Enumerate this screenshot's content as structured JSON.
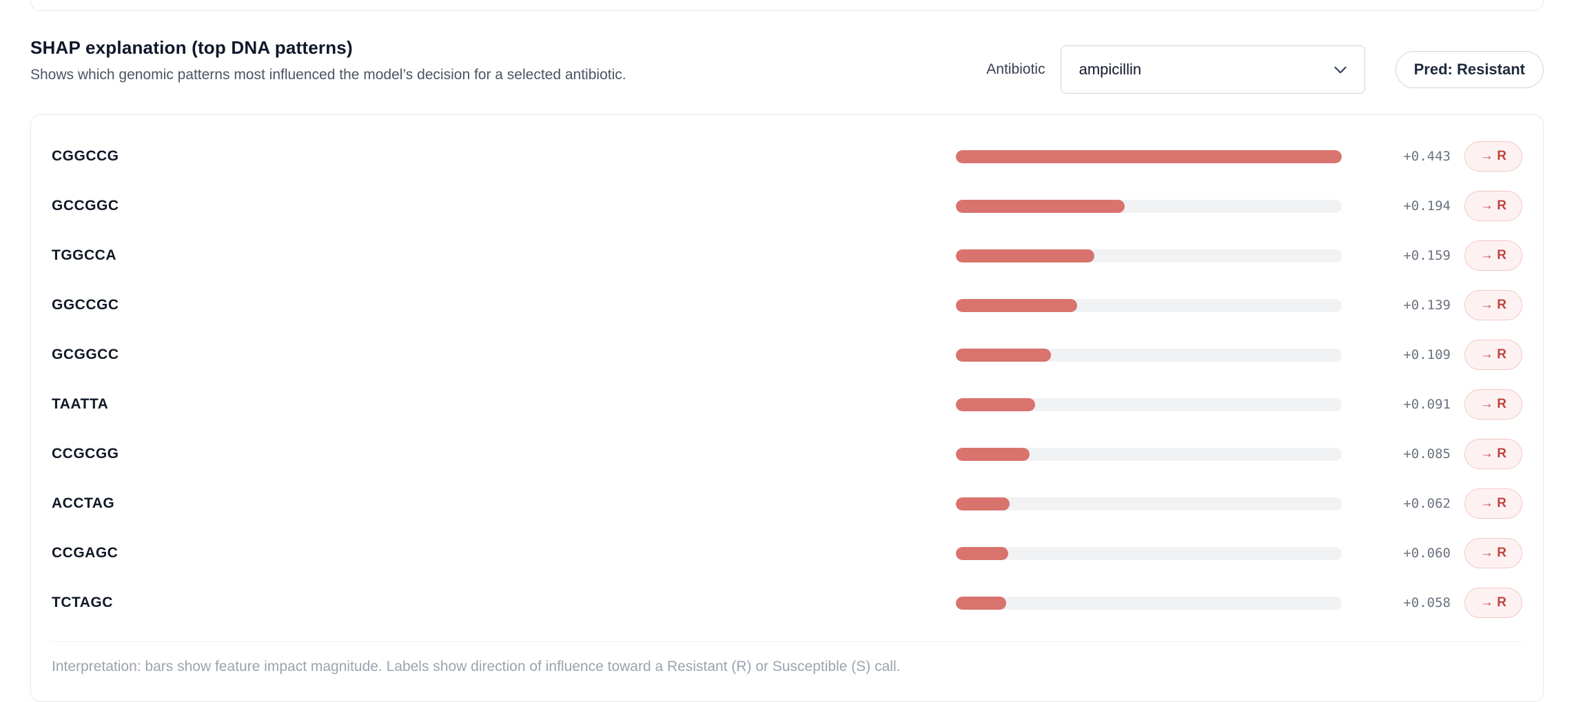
{
  "header": {
    "title": "SHAP explanation (top DNA patterns)",
    "subtitle": "Shows which genomic patterns most influenced the model’s decision for a selected antibiotic.",
    "antibiotic_label": "Antibiotic",
    "antibiotic_selected": "ampicillin",
    "prediction_badge": "Pred: Resistant"
  },
  "chart_data": {
    "type": "bar",
    "orientation": "horizontal",
    "title": "SHAP explanation (top DNA patterns)",
    "categories": [
      "CGGCCG",
      "GCCGGC",
      "TGGCCA",
      "GGCCGC",
      "GCGGCC",
      "TAATTA",
      "CCGCGG",
      "ACCTAG",
      "CCGAGC",
      "TCTAGC"
    ],
    "values": [
      0.443,
      0.194,
      0.159,
      0.139,
      0.109,
      0.091,
      0.085,
      0.062,
      0.06,
      0.058
    ],
    "value_labels": [
      "+0.443",
      "+0.194",
      "+0.159",
      "+0.139",
      "+0.109",
      "+0.091",
      "+0.085",
      "+0.062",
      "+0.060",
      "+0.058"
    ],
    "direction_labels": [
      "→ R",
      "→ R",
      "→ R",
      "→ R",
      "→ R",
      "→ R",
      "→ R",
      "→ R",
      "→ R",
      "→ R"
    ],
    "xlim": [
      0,
      0.443
    ],
    "legend": "off",
    "grid": "off",
    "bar_color": "#d9736e",
    "track_color": "#f1f2f4"
  },
  "footer": {
    "interpretation": "Interpretation: bars show feature impact magnitude. Labels show direction of influence toward a Resistant (R) or Susceptible (S) call."
  },
  "colors": {
    "badge_bg": "#fdf2f1",
    "badge_border": "#f2c7c4",
    "badge_text": "#bf4440",
    "value_text": "#6b7280",
    "card_border": "#e5e7eb"
  }
}
